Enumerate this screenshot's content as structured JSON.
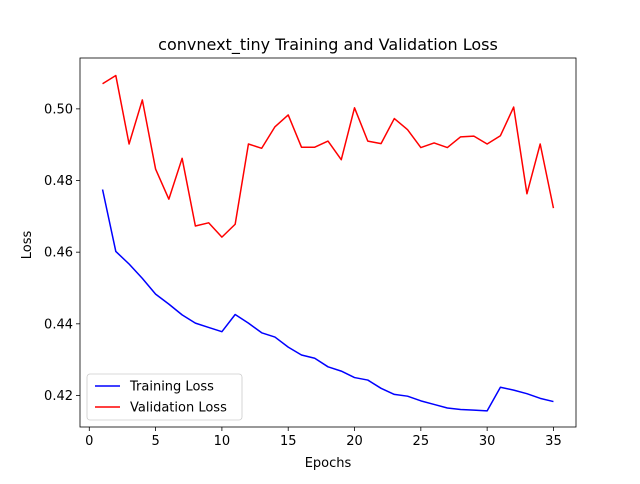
{
  "chart_data": {
    "type": "line",
    "title": "convnext_tiny Training and Validation Loss",
    "xlabel": "Epochs",
    "ylabel": "Loss",
    "xlim": [
      -0.7,
      36.7
    ],
    "ylim": [
      0.4112,
      0.5142
    ],
    "xticks": [
      0,
      5,
      10,
      15,
      20,
      25,
      30,
      35
    ],
    "yticks": [
      0.42,
      0.44,
      0.46,
      0.48,
      0.5
    ],
    "ytick_labels": [
      "0.42",
      "0.44",
      "0.46",
      "0.48",
      "0.50"
    ],
    "grid": false,
    "legend_position": "lower-left",
    "x": [
      1,
      2,
      3,
      4,
      5,
      6,
      7,
      8,
      9,
      10,
      11,
      12,
      13,
      14,
      15,
      16,
      17,
      18,
      19,
      20,
      21,
      22,
      23,
      24,
      25,
      26,
      27,
      28,
      29,
      30,
      31,
      32,
      33,
      34,
      35
    ],
    "series": [
      {
        "name": "Training Loss",
        "color": "#0000ff",
        "values": [
          0.4775,
          0.4602,
          0.4567,
          0.4527,
          0.4483,
          0.4455,
          0.4425,
          0.4402,
          0.439,
          0.4378,
          0.4426,
          0.4402,
          0.4375,
          0.4363,
          0.4335,
          0.4313,
          0.4304,
          0.428,
          0.4268,
          0.425,
          0.4243,
          0.422,
          0.4203,
          0.4198,
          0.4185,
          0.4175,
          0.4165,
          0.4161,
          0.4159,
          0.4157,
          0.4223,
          0.4215,
          0.4205,
          0.4192,
          0.4183
        ]
      },
      {
        "name": "Validation Loss",
        "color": "#ff0000",
        "values": [
          0.507,
          0.5093,
          0.4902,
          0.5025,
          0.4832,
          0.4748,
          0.4862,
          0.4673,
          0.4682,
          0.4642,
          0.4678,
          0.4902,
          0.489,
          0.495,
          0.4983,
          0.4893,
          0.4893,
          0.491,
          0.4858,
          0.5003,
          0.491,
          0.4903,
          0.4973,
          0.4942,
          0.4892,
          0.4905,
          0.4892,
          0.4922,
          0.4924,
          0.4902,
          0.4925,
          0.5005,
          0.4763,
          0.4902,
          0.4723
        ]
      }
    ]
  }
}
